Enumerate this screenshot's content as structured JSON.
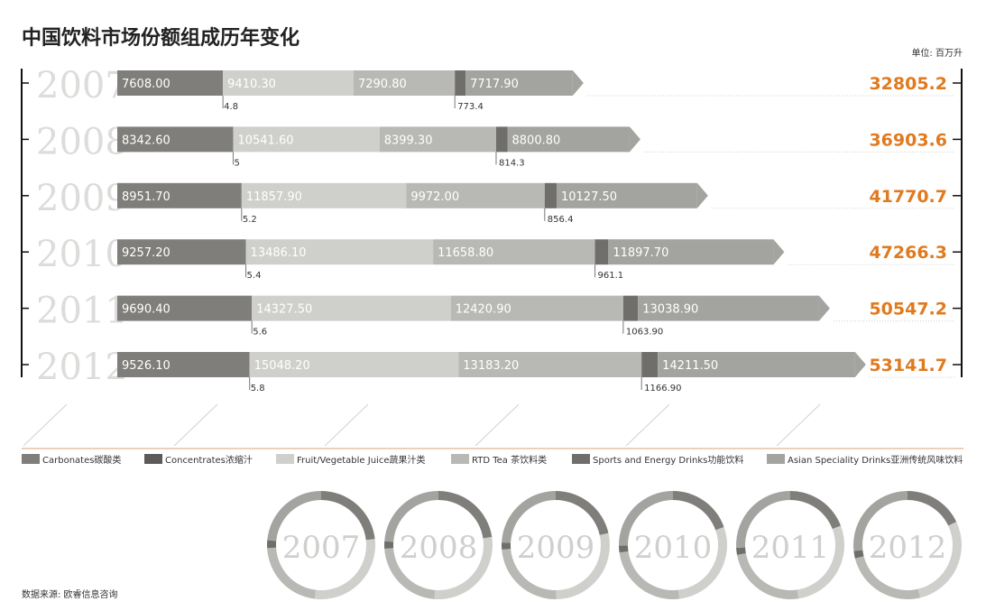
{
  "title": "中国饮料市场份额组成历年变化",
  "unit": "单位: 百万升",
  "source": "数据来源: 欧睿信息咨询",
  "colors": {
    "carbonates": "#7f7e7a",
    "concentrates": "#5c5b58",
    "fruit": "#cfcfcb",
    "rtd_tea": "#b8b8b4",
    "sports": "#6f6e6b",
    "asian": "#a3a3a0",
    "total": "#e07a1f",
    "year_text": "#dcdcda",
    "axis": "#111111",
    "legend_rule": "#d9a07a"
  },
  "chart_data": {
    "type": "bar",
    "subtype": "stacked-horizontal",
    "categories": [
      "2007",
      "2008",
      "2009",
      "2010",
      "2011",
      "2012"
    ],
    "series": [
      {
        "key": "carbonates",
        "name": "Carbonates碳酸类",
        "values": [
          7608.0,
          8342.6,
          8951.7,
          9257.2,
          9690.4,
          9526.1
        ],
        "labels": [
          "7608.00",
          "8342.60",
          "8951.70",
          "9257.20",
          "9690.40",
          "9526.10"
        ]
      },
      {
        "key": "concentrates",
        "name": "Concentrates浓缩汁",
        "values": [
          4.8,
          5,
          5.2,
          5.4,
          5.6,
          5.8
        ],
        "labels": [
          "4.8",
          "5",
          "5.2",
          "5.4",
          "5.6",
          "5.8"
        ]
      },
      {
        "key": "fruit",
        "name": "Fruit/Vegetable Juice蔬果汁类",
        "values": [
          9410.3,
          10541.6,
          11857.9,
          13486.1,
          14327.5,
          15048.2
        ],
        "labels": [
          "9410.30",
          "10541.60",
          "11857.90",
          "13486.10",
          "14327.50",
          "15048.20"
        ]
      },
      {
        "key": "rtd_tea",
        "name": "RTD Tea 茶饮料类",
        "values": [
          7290.8,
          8399.3,
          9972.0,
          11658.8,
          12420.9,
          13183.2
        ],
        "labels": [
          "7290.80",
          "8399.30",
          "9972.00",
          "11658.80",
          "12420.90",
          "13183.20"
        ]
      },
      {
        "key": "sports",
        "name": "Sports and Energy Drinks功能饮料",
        "values": [
          773.4,
          814.3,
          856.4,
          961.1,
          1063.9,
          1166.9
        ],
        "labels": [
          "773.4",
          "814.3",
          "856.4",
          "961.1",
          "1063.90",
          "1166.90"
        ]
      },
      {
        "key": "asian",
        "name": "Asian Speciality Drinks亚洲传统风味饮料",
        "values": [
          7717.9,
          8800.8,
          10127.5,
          11897.7,
          13038.9,
          14211.5
        ],
        "labels": [
          "7717.90",
          "8800.80",
          "10127.50",
          "11897.70",
          "13038.90",
          "14211.50"
        ]
      }
    ],
    "totals": [
      32805.2,
      36903.6,
      41770.7,
      47266.3,
      50547.2,
      53141.7
    ],
    "total_labels": [
      "32805.2",
      "36903.6",
      "41770.7",
      "47266.3",
      "50547.2",
      "53141.7"
    ],
    "donut_order": [
      "carbonates",
      "concentrates",
      "fruit",
      "rtd_tea",
      "sports",
      "asian"
    ]
  }
}
